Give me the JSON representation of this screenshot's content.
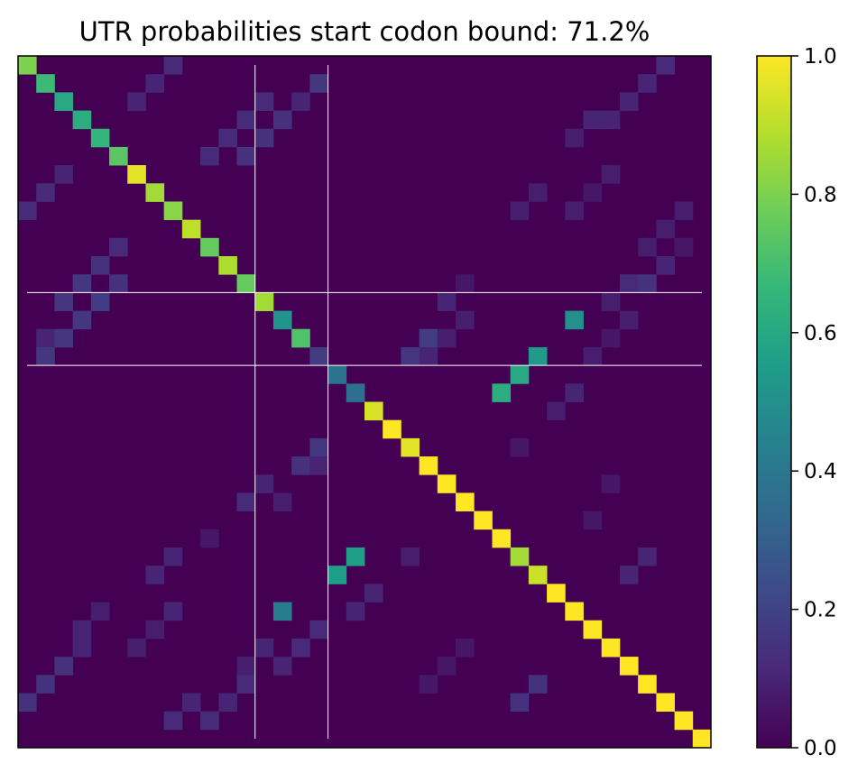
{
  "chart_data": {
    "type": "heatmap",
    "title": "UTR probabilities start codon bound: 71.2%",
    "xlabel": "",
    "ylabel": "",
    "matrix_size": 38,
    "colormap": "viridis",
    "colormap_stops": [
      "#440154",
      "#482878",
      "#3e4989",
      "#31688e",
      "#26828e",
      "#1f9e89",
      "#35b779",
      "#6ece58",
      "#b5de2b",
      "#fde725"
    ],
    "colorbar": {
      "vmin": 0.0,
      "vmax": 1.0,
      "ticks": [
        0.0,
        0.2,
        0.4,
        0.6,
        0.8,
        1.0
      ],
      "tick_labels": [
        "0.0",
        "0.2",
        "0.4",
        "0.6",
        "0.8",
        "1.0"
      ]
    },
    "guide_lines": {
      "vertical": [
        13,
        17
      ],
      "horizontal": [
        13,
        17
      ],
      "color": "#ffffff"
    },
    "cells": [
      [
        0,
        0,
        0.8
      ],
      [
        1,
        1,
        0.68
      ],
      [
        2,
        2,
        0.6
      ],
      [
        3,
        3,
        0.62
      ],
      [
        4,
        4,
        0.66
      ],
      [
        5,
        5,
        0.74
      ],
      [
        6,
        6,
        0.96
      ],
      [
        7,
        7,
        0.86
      ],
      [
        8,
        8,
        0.82
      ],
      [
        9,
        9,
        0.9
      ],
      [
        10,
        10,
        0.76
      ],
      [
        11,
        11,
        0.88
      ],
      [
        12,
        12,
        0.76
      ],
      [
        13,
        13,
        0.86
      ],
      [
        14,
        14,
        0.52
      ],
      [
        15,
        15,
        0.72
      ],
      [
        16,
        16,
        0.18
      ],
      [
        17,
        17,
        0.38
      ],
      [
        18,
        18,
        0.36
      ],
      [
        19,
        19,
        0.94
      ],
      [
        20,
        20,
        1.0
      ],
      [
        21,
        21,
        0.96
      ],
      [
        22,
        22,
        1.0
      ],
      [
        23,
        23,
        1.0
      ],
      [
        24,
        24,
        1.0
      ],
      [
        25,
        25,
        1.0
      ],
      [
        26,
        26,
        1.0
      ],
      [
        27,
        27,
        0.86
      ],
      [
        28,
        28,
        0.92
      ],
      [
        29,
        29,
        1.0
      ],
      [
        30,
        30,
        1.0
      ],
      [
        31,
        31,
        1.0
      ],
      [
        32,
        32,
        1.0
      ],
      [
        33,
        33,
        1.0
      ],
      [
        34,
        34,
        1.0
      ],
      [
        35,
        35,
        1.0
      ],
      [
        36,
        36,
        1.0
      ],
      [
        37,
        37,
        1.0
      ],
      [
        0,
        8,
        0.12
      ],
      [
        0,
        35,
        0.12
      ],
      [
        1,
        7,
        0.1
      ],
      [
        1,
        16,
        0.16
      ],
      [
        1,
        34,
        0.1
      ],
      [
        2,
        6,
        0.1
      ],
      [
        2,
        13,
        0.12
      ],
      [
        2,
        15,
        0.1
      ],
      [
        2,
        33,
        0.1
      ],
      [
        3,
        12,
        0.12
      ],
      [
        3,
        14,
        0.14
      ],
      [
        3,
        31,
        0.1
      ],
      [
        3,
        32,
        0.1
      ],
      [
        4,
        11,
        0.12
      ],
      [
        4,
        13,
        0.14
      ],
      [
        4,
        30,
        0.08
      ],
      [
        5,
        10,
        0.12
      ],
      [
        5,
        12,
        0.14
      ],
      [
        6,
        2,
        0.1
      ],
      [
        6,
        32,
        0.08
      ],
      [
        7,
        1,
        0.12
      ],
      [
        7,
        28,
        0.08
      ],
      [
        7,
        31,
        0.06
      ],
      [
        8,
        0,
        0.12
      ],
      [
        8,
        27,
        0.08
      ],
      [
        8,
        30,
        0.08
      ],
      [
        8,
        36,
        0.08
      ],
      [
        9,
        35,
        0.08
      ],
      [
        10,
        5,
        0.12
      ],
      [
        10,
        34,
        0.08
      ],
      [
        10,
        36,
        0.06
      ],
      [
        11,
        4,
        0.14
      ],
      [
        11,
        35,
        0.1
      ],
      [
        12,
        3,
        0.16
      ],
      [
        12,
        5,
        0.14
      ],
      [
        12,
        24,
        0.06
      ],
      [
        12,
        33,
        0.12
      ],
      [
        12,
        34,
        0.14
      ],
      [
        13,
        2,
        0.16
      ],
      [
        13,
        4,
        0.18
      ],
      [
        13,
        23,
        0.1
      ],
      [
        13,
        32,
        0.08
      ],
      [
        14,
        3,
        0.16
      ],
      [
        14,
        24,
        0.08
      ],
      [
        14,
        30,
        0.5
      ],
      [
        14,
        33,
        0.08
      ],
      [
        15,
        1,
        0.1
      ],
      [
        15,
        2,
        0.16
      ],
      [
        15,
        22,
        0.18
      ],
      [
        15,
        23,
        0.08
      ],
      [
        15,
        32,
        0.06
      ],
      [
        16,
        1,
        0.16
      ],
      [
        16,
        21,
        0.16
      ],
      [
        16,
        22,
        0.1
      ],
      [
        16,
        28,
        0.54
      ],
      [
        16,
        31,
        0.08
      ],
      [
        17,
        27,
        0.6
      ],
      [
        18,
        26,
        0.62
      ],
      [
        18,
        30,
        0.1
      ],
      [
        19,
        29,
        0.08
      ],
      [
        21,
        16,
        0.16
      ],
      [
        21,
        27,
        0.06
      ],
      [
        22,
        15,
        0.14
      ],
      [
        22,
        16,
        0.1
      ],
      [
        23,
        13,
        0.1
      ],
      [
        23,
        32,
        0.06
      ],
      [
        24,
        12,
        0.12
      ],
      [
        24,
        14,
        0.08
      ],
      [
        25,
        31,
        0.06
      ],
      [
        26,
        10,
        0.06
      ],
      [
        27,
        8,
        0.1
      ],
      [
        27,
        18,
        0.56
      ],
      [
        27,
        21,
        0.08
      ],
      [
        27,
        34,
        0.1
      ],
      [
        28,
        7,
        0.1
      ],
      [
        28,
        17,
        0.56
      ],
      [
        28,
        33,
        0.1
      ],
      [
        29,
        19,
        0.1
      ],
      [
        30,
        4,
        0.08
      ],
      [
        30,
        8,
        0.1
      ],
      [
        30,
        14,
        0.42
      ],
      [
        30,
        18,
        0.1
      ],
      [
        31,
        3,
        0.1
      ],
      [
        31,
        7,
        0.08
      ],
      [
        31,
        16,
        0.12
      ],
      [
        32,
        3,
        0.1
      ],
      [
        32,
        6,
        0.08
      ],
      [
        32,
        13,
        0.1
      ],
      [
        32,
        15,
        0.12
      ],
      [
        32,
        24,
        0.06
      ],
      [
        33,
        2,
        0.14
      ],
      [
        33,
        12,
        0.08
      ],
      [
        33,
        14,
        0.1
      ],
      [
        33,
        23,
        0.06
      ],
      [
        34,
        1,
        0.14
      ],
      [
        34,
        12,
        0.12
      ],
      [
        34,
        22,
        0.06
      ],
      [
        34,
        28,
        0.14
      ],
      [
        35,
        0,
        0.14
      ],
      [
        35,
        9,
        0.1
      ],
      [
        35,
        11,
        0.1
      ],
      [
        35,
        27,
        0.14
      ],
      [
        36,
        8,
        0.12
      ],
      [
        36,
        10,
        0.12
      ]
    ]
  }
}
